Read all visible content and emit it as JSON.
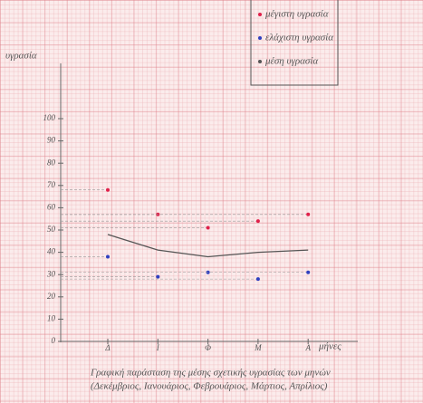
{
  "chart_data": {
    "type": "line",
    "title_lines": [
      "Γραφική παράσταση της μέσης σχετικής υγρασίας των μηνών",
      "(Δεκέμβριος, Ιανουάριος, Φεβρουάριος, Μάρτιος, Απρίλιος)"
    ],
    "y_label": "υγρασία",
    "x_label": "μήνες",
    "categories": [
      "Δ",
      "Ι",
      "Φ",
      "Μ",
      "Α"
    ],
    "series": [
      {
        "name": "μέγιστη υγρασία",
        "color": "#e0204a",
        "style": "points",
        "values": [
          68,
          57,
          51,
          54,
          57
        ]
      },
      {
        "name": "ελάχιστη υγρασία",
        "color": "#3040c0",
        "style": "points",
        "values": [
          38,
          29,
          31,
          28,
          31
        ]
      },
      {
        "name": "μέση υγρασία",
        "color": "#555555",
        "style": "line",
        "values": [
          48,
          41,
          38,
          40,
          41
        ]
      }
    ],
    "ylim": [
      0,
      100
    ],
    "yticks": [
      0,
      10,
      20,
      30,
      40,
      50,
      60,
      70,
      80,
      90,
      100
    ],
    "legend": "top-right"
  }
}
